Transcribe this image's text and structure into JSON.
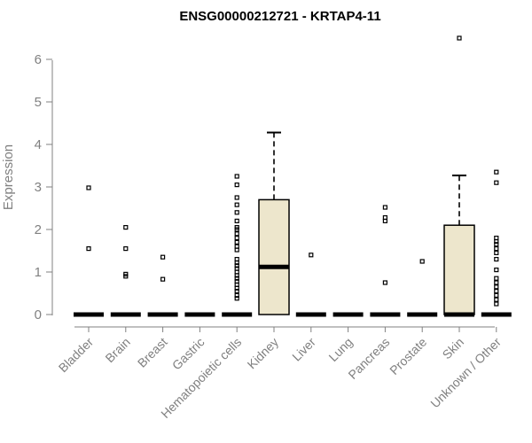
{
  "chart_data": {
    "type": "boxplot",
    "title": "ENSG00000212721 - KRTAP4-11",
    "xlabel": "",
    "ylabel": "Expression",
    "ylim": [
      0,
      6.5
    ],
    "yticks": [
      0,
      1,
      2,
      3,
      4,
      5,
      6
    ],
    "grid": false,
    "colors": {
      "box_fill": "#ede6cc",
      "axis": "#808080",
      "ink": "#000000"
    },
    "categories": [
      "Bladder",
      "Brain",
      "Breast",
      "Gastric",
      "Hematopoietic cells",
      "Kidney",
      "Liver",
      "Lung",
      "Pancreas",
      "Prostate",
      "Skin",
      "Unknown / Other"
    ],
    "series": [
      {
        "name": "Bladder",
        "q1": 0,
        "median": 0,
        "q3": 0,
        "whisker_low": 0,
        "whisker_high": 0,
        "outliers": [
          1.55,
          2.98
        ]
      },
      {
        "name": "Brain",
        "q1": 0,
        "median": 0,
        "q3": 0,
        "whisker_low": 0,
        "whisker_high": 0,
        "outliers": [
          0.9,
          0.95,
          1.55,
          2.05
        ]
      },
      {
        "name": "Breast",
        "q1": 0,
        "median": 0,
        "q3": 0,
        "whisker_low": 0,
        "whisker_high": 0,
        "outliers": [
          0.83,
          1.35
        ]
      },
      {
        "name": "Gastric",
        "q1": 0,
        "median": 0,
        "q3": 0,
        "whisker_low": 0,
        "whisker_high": 0,
        "outliers": []
      },
      {
        "name": "Hematopoietic cells",
        "q1": 0,
        "median": 0,
        "q3": 0,
        "whisker_low": 0,
        "whisker_high": 0,
        "outliers": [
          0.38,
          0.45,
          0.55,
          0.62,
          0.7,
          0.78,
          0.85,
          0.92,
          1.0,
          1.08,
          1.15,
          1.22,
          1.3,
          1.52,
          1.6,
          1.7,
          1.8,
          1.9,
          2.0,
          2.05,
          2.2,
          2.4,
          2.58,
          2.75,
          3.05,
          3.25
        ]
      },
      {
        "name": "Kidney",
        "q1": 0,
        "median": 1.12,
        "q3": 2.7,
        "whisker_low": 0,
        "whisker_high": 4.28,
        "outliers": []
      },
      {
        "name": "Liver",
        "q1": 0,
        "median": 0,
        "q3": 0,
        "whisker_low": 0,
        "whisker_high": 0,
        "outliers": [
          1.4
        ]
      },
      {
        "name": "Lung",
        "q1": 0,
        "median": 0,
        "q3": 0,
        "whisker_low": 0,
        "whisker_high": 0,
        "outliers": []
      },
      {
        "name": "Pancreas",
        "q1": 0,
        "median": 0,
        "q3": 0,
        "whisker_low": 0,
        "whisker_high": 0,
        "outliers": [
          0.75,
          2.2,
          2.28,
          2.52
        ]
      },
      {
        "name": "Prostate",
        "q1": 0,
        "median": 0,
        "q3": 0,
        "whisker_low": 0,
        "whisker_high": 0,
        "outliers": [
          1.25
        ]
      },
      {
        "name": "Skin",
        "q1": 0,
        "median": 0,
        "q3": 2.1,
        "whisker_low": 0,
        "whisker_high": 3.27,
        "outliers": [
          6.5
        ]
      },
      {
        "name": "Unknown / Other",
        "q1": 0,
        "median": 0,
        "q3": 0,
        "whisker_low": 0,
        "whisker_high": 0,
        "outliers": [
          0.25,
          0.35,
          0.45,
          0.55,
          0.65,
          0.75,
          0.85,
          1.05,
          1.3,
          1.45,
          1.55,
          1.65,
          1.72,
          1.8,
          3.1,
          3.35
        ]
      }
    ]
  }
}
